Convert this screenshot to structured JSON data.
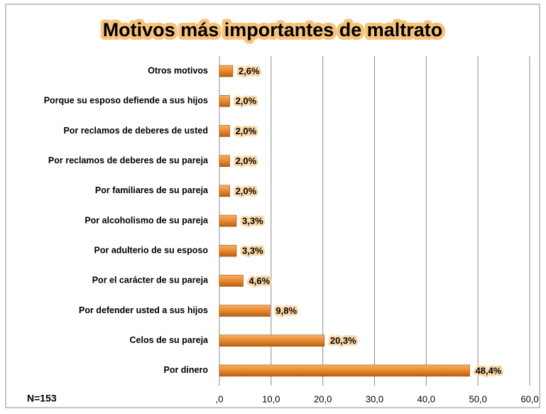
{
  "chart_data": {
    "type": "hbar",
    "title": "Motivos más importantes de maltrato",
    "categories": [
      "Otros motivos",
      "Porque su esposo defiende a sus hijos",
      "Por reclamos de deberes de usted",
      "Por reclamos de deberes de su pareja",
      "Por familiares de su pareja",
      "Por alcoholismo de su pareja",
      "Por adulterio de su esposo",
      "Por el carácter de su pareja",
      "Por defender usted a sus  hijos",
      "Celos de su pareja",
      "Por dinero"
    ],
    "values": [
      2.6,
      2.0,
      2.0,
      2.0,
      2.0,
      3.3,
      3.3,
      4.6,
      9.8,
      20.3,
      48.4
    ],
    "value_labels": [
      "2,6%",
      "2,0%",
      "2,0%",
      "2,0%",
      "2,0%",
      "3,3%",
      "3,3%",
      "4,6%",
      "9,8%",
      "20,3%",
      "48,4%"
    ],
    "color": "#e8892e",
    "xlim": [
      0,
      60
    ],
    "xticks": [
      {
        "value": 0,
        "label": ",0"
      },
      {
        "value": 10,
        "label": "10,0"
      },
      {
        "value": 20,
        "label": "20,0"
      },
      {
        "value": 30,
        "label": "30,0"
      },
      {
        "value": 40,
        "label": "40,0"
      },
      {
        "value": 50,
        "label": "50,0"
      },
      {
        "value": 60,
        "label": "60,0"
      }
    ],
    "grid": true,
    "annotation": "N=153"
  }
}
